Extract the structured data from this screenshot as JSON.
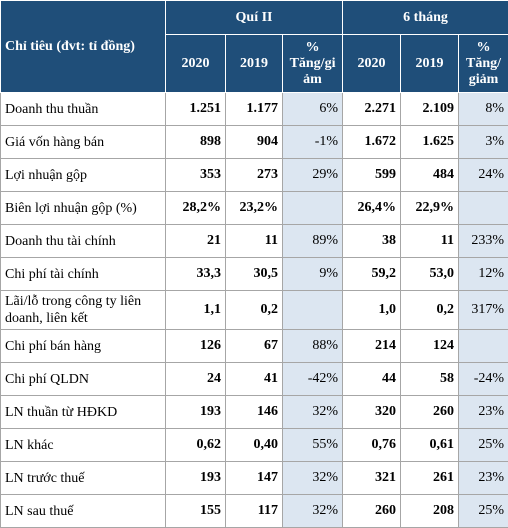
{
  "table": {
    "header": {
      "label": "Chỉ tiêu (đvt: tỉ đồng)",
      "group1": "Quí II",
      "group2": "6 tháng",
      "columns": [
        "2020",
        "2019",
        "% Tăng/giảm",
        "2020",
        "2019",
        "% Tăng/giảm"
      ]
    },
    "rows": [
      [
        "Doanh thu thuần",
        "1.251",
        "1.177",
        "6%",
        "2.271",
        "2.109",
        "8%"
      ],
      [
        "Giá vốn hàng bán",
        "898",
        "904",
        "-1%",
        "1.672",
        "1.625",
        "3%"
      ],
      [
        "Lợi nhuận gộp",
        "353",
        "273",
        "29%",
        "599",
        "484",
        "24%"
      ],
      [
        "Biên lợi nhuận gộp (%)",
        "28,2%",
        "23,2%",
        null,
        "26,4%",
        "22,9%",
        null
      ],
      [
        "Doanh thu tài chính",
        "21",
        "11",
        "89%",
        "38",
        "11",
        "233%"
      ],
      [
        "Chi phí tài chính",
        "33,3",
        "30,5",
        "9%",
        "59,2",
        "53,0",
        "12%"
      ],
      [
        "Lãi/lỗ trong công ty liên doanh, liên kết",
        "1,1",
        "0,2",
        null,
        "1,0",
        "0,2",
        "317%"
      ],
      [
        "Chi phí bán hàng",
        "126",
        "67",
        "88%",
        "214",
        "124",
        null
      ],
      [
        "Chi phí QLDN",
        "24",
        "41",
        "-42%",
        "44",
        "58",
        "-24%"
      ],
      [
        "LN thuần từ HĐKD",
        "193",
        "146",
        "32%",
        "320",
        "260",
        "23%"
      ],
      [
        "LN khác",
        "0,62",
        "0,40",
        "55%",
        "0,76",
        "0,61",
        "25%"
      ],
      [
        "LN trước thuế",
        "193",
        "147",
        "32%",
        "321",
        "261",
        "23%"
      ],
      [
        "LN sau thuế",
        "155",
        "117",
        "32%",
        "260",
        "208",
        "25%"
      ]
    ]
  }
}
